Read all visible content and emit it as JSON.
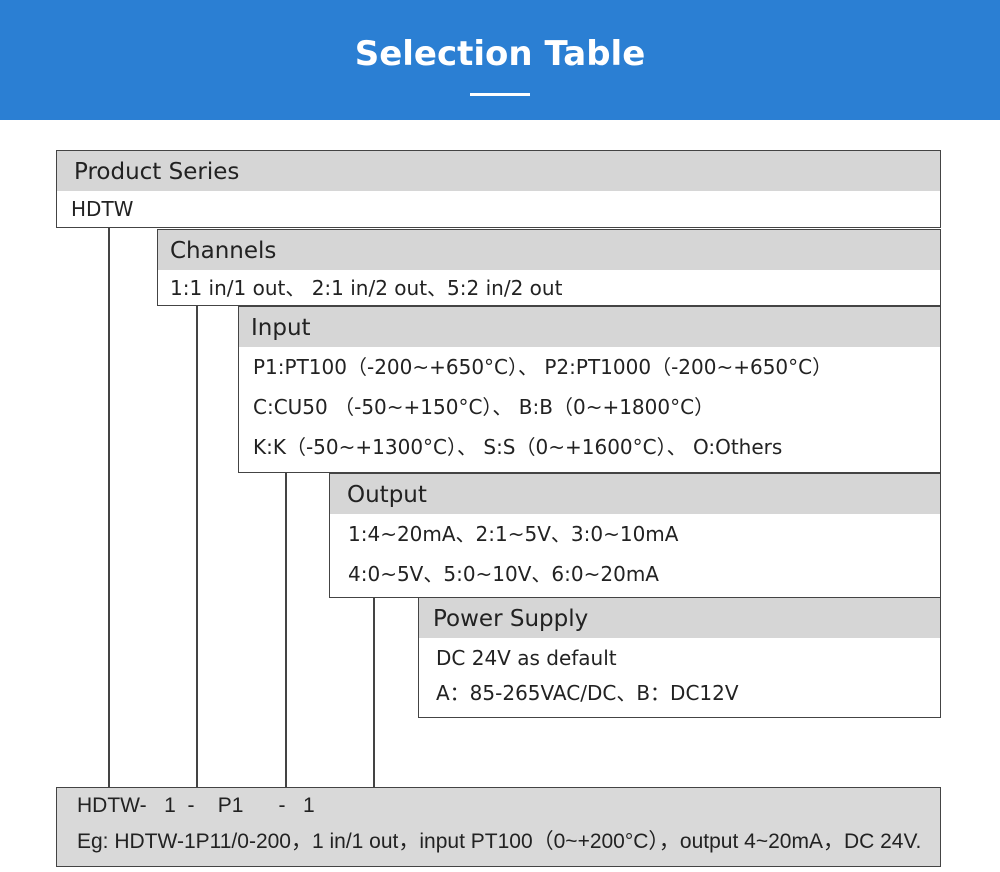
{
  "header": {
    "title": "Selection Table"
  },
  "sections": [
    {
      "title": "Product Series",
      "lines": [
        "HDTW"
      ]
    },
    {
      "title": "Channels",
      "lines": [
        "1:1 in/1 out、 2:1 in/2 out、5:2 in/2 out"
      ]
    },
    {
      "title": "Input",
      "lines": [
        "P1:PT100（-200~+650°C）、 P2:PT1000（-200~+650°C）",
        "C:CU50 （-50~+150°C）、 B:B（0~+1800°C）",
        "K:K（-50~+1300°C）、 S:S（0~+1600°C）、 O:Others"
      ]
    },
    {
      "title": "Output",
      "lines": [
        "1:4~20mA、2:1~5V、3:0~10mA",
        "4:0~5V、5:0~10V、6:0~20mA"
      ]
    },
    {
      "title": "Power Supply",
      "lines": [
        "DC 24V as default",
        "A：85-265VAC/DC、B：DC12V"
      ]
    }
  ],
  "example": {
    "code": "HDTW-   1  -    P1      -   1",
    "description": "Eg: HDTW-1P11/0-200，1 in/1 out，input PT100（0~+200°C），output 4~20mA，DC 24V."
  },
  "colors": {
    "banner": "#2b7fd3",
    "header_bg": "#d6d6d6",
    "example_bg": "#d9d9d9"
  }
}
